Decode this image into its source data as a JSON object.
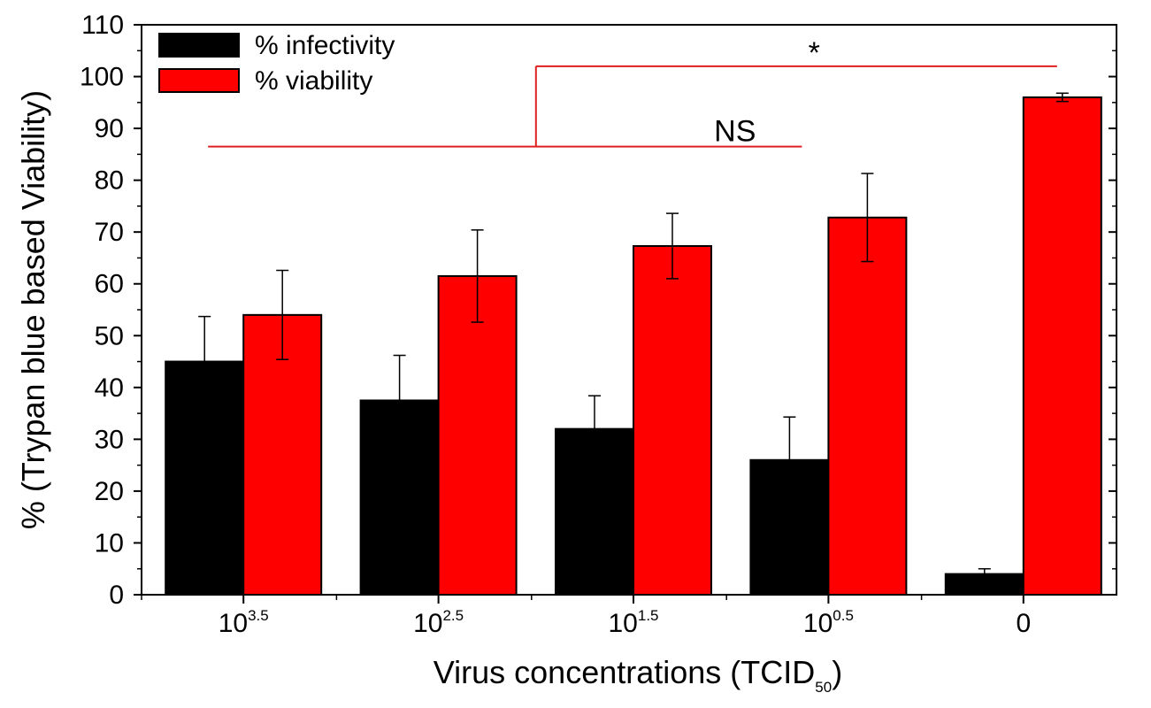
{
  "chart_data": {
    "type": "bar",
    "title": "",
    "xlabel": "Virus concentrations (TCID",
    "xlabel_subscript": "50",
    "xlabel_close": ")",
    "ylabel": "% (Trypan blue based Viability)",
    "ylim": [
      0,
      110
    ],
    "yticks": [
      "0",
      "10",
      "20",
      "30",
      "40",
      "50",
      "60",
      "70",
      "80",
      "90",
      "100",
      "110"
    ],
    "categories": [
      {
        "base": "10",
        "exp": "3.5"
      },
      {
        "base": "10",
        "exp": "2.5"
      },
      {
        "base": "10",
        "exp": "1.5"
      },
      {
        "base": "10",
        "exp": "0.5"
      },
      {
        "base": "0",
        "exp": ""
      }
    ],
    "series": [
      {
        "name": "% infectivity",
        "color": "#000000",
        "values": [
          45,
          37.5,
          32,
          26,
          4
        ],
        "errors": [
          8.7,
          8.7,
          6.4,
          8.3,
          1
        ]
      },
      {
        "name": "% viability",
        "color": "#ff0000",
        "values": [
          54,
          61.5,
          67.3,
          72.8,
          96
        ],
        "errors": [
          8.6,
          8.9,
          6.3,
          8.5,
          0.8
        ]
      }
    ],
    "legend_position": "top-left",
    "annotations": [
      {
        "text": "NS",
        "type": "bracket",
        "from_category": 0,
        "to_category": 3,
        "y": 86.5
      },
      {
        "text": "*",
        "type": "bracket",
        "from_bracket": "NS",
        "to_category": 4,
        "y": 102
      }
    ]
  }
}
